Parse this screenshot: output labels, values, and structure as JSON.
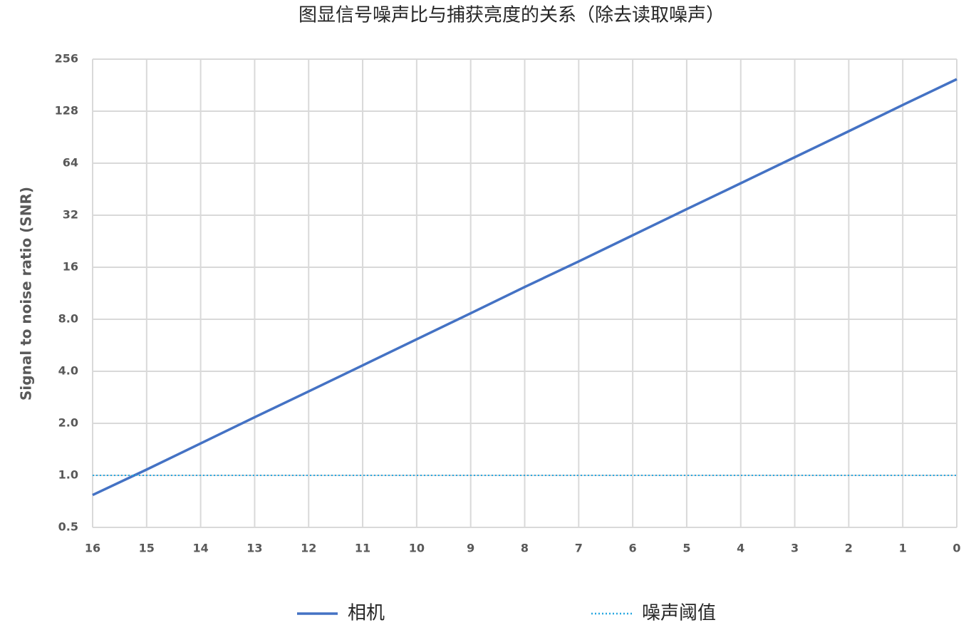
{
  "chart_data": {
    "type": "line",
    "title": "图显信号噪声比与捕获亮度的关系（除去读取噪声）",
    "y_label": "Signal to noise ratio (SNR)",
    "x": [
      16,
      15,
      14,
      13,
      12,
      11,
      10,
      9,
      8,
      7,
      6,
      5,
      4,
      3,
      2,
      1,
      0
    ],
    "series": [
      {
        "name": "相机",
        "color": "#4472c4",
        "style": "solid",
        "values": [
          0.77,
          1.08,
          1.53,
          2.17,
          3.06,
          4.33,
          6.13,
          8.67,
          12.3,
          17.3,
          24.5,
          34.7,
          49.0,
          69.3,
          98,
          139,
          196
        ]
      },
      {
        "name": "噪声阈值",
        "color": "#29a8e0",
        "style": "dotted",
        "values": [
          1,
          1,
          1,
          1,
          1,
          1,
          1,
          1,
          1,
          1,
          1,
          1,
          1,
          1,
          1,
          1,
          1
        ]
      }
    ],
    "xlim": [
      16,
      0
    ],
    "xticks": [
      16,
      15,
      14,
      13,
      12,
      11,
      10,
      9,
      8,
      7,
      6,
      5,
      4,
      3,
      2,
      1,
      0
    ],
    "ylim": [
      0.5,
      256
    ],
    "log_y": true,
    "yticks": [
      0.5,
      {
        "value": 1,
        "label": "1.0"
      },
      {
        "value": 2,
        "label": "2.0"
      },
      {
        "value": 4,
        "label": "4.0"
      },
      {
        "value": 8,
        "label": "8.0"
      },
      16,
      32,
      64,
      128,
      256
    ],
    "grid": true,
    "legend": "bottom"
  }
}
